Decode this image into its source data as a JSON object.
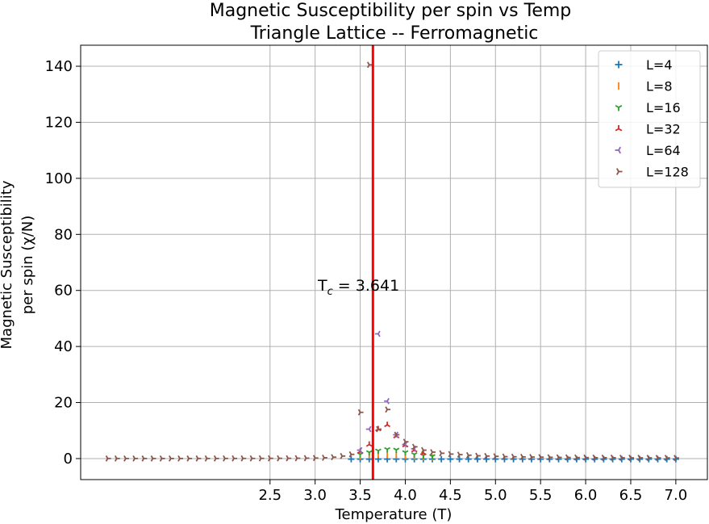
{
  "chart_data": {
    "type": "scatter",
    "title_line1": "Magnetic Susceptibility per spin vs Temp",
    "title_line2": "Triangle Lattice -- Ferromagnetic",
    "xlabel": "Temperature (T)",
    "ylabel_line1": "Magnetic Susceptibility",
    "ylabel_line2": "per spin (χ/N)",
    "xlim": [
      0.4,
      7.35
    ],
    "ylim": [
      -7.5,
      147.5
    ],
    "x_ticks": [
      2.5,
      3.0,
      3.5,
      4.0,
      4.5,
      5.0,
      5.5,
      6.0,
      6.5,
      7.0
    ],
    "x_tick_labels": [
      "2.5",
      "3.0",
      "3.5",
      "4.0",
      "4.5",
      "5.0",
      "5.5",
      "6.0",
      "6.5",
      "7.0"
    ],
    "y_ticks": [
      0,
      20,
      40,
      60,
      80,
      100,
      120,
      140
    ],
    "y_tick_labels": [
      "0",
      "20",
      "40",
      "60",
      "80",
      "100",
      "120",
      "140"
    ],
    "grid": true,
    "legend_placement": "top-right",
    "vline": {
      "x": 3.641,
      "color": "#ff0000"
    },
    "annotation": {
      "prefix": "T",
      "subscript": "c",
      "suffix": " = 3.641",
      "x": 3.0,
      "y": 61
    },
    "series": [
      {
        "name": "L=4",
        "color": "#1f77b4",
        "marker": "plus",
        "x": [
          3.4,
          3.5,
          3.6,
          3.7,
          3.8,
          3.9,
          4.0,
          4.1,
          4.2,
          4.3,
          4.4,
          4.5,
          4.6,
          4.7,
          4.8,
          4.9,
          5.0,
          5.1,
          5.2,
          5.3,
          5.4,
          5.5,
          5.6,
          5.7,
          5.8,
          5.9,
          6.0,
          6.1,
          6.2,
          6.3,
          6.4,
          6.5,
          6.6,
          6.7,
          6.8,
          6.9,
          7.0
        ],
        "y": [
          -0.2,
          -0.2,
          -0.2,
          -0.2,
          -0.2,
          -0.2,
          -0.2,
          -0.2,
          -0.2,
          -0.2,
          -0.2,
          -0.2,
          -0.2,
          -0.2,
          -0.2,
          -0.2,
          -0.2,
          -0.2,
          -0.2,
          -0.2,
          -0.2,
          -0.2,
          -0.2,
          -0.2,
          -0.2,
          -0.2,
          -0.2,
          -0.2,
          -0.2,
          -0.2,
          -0.2,
          -0.2,
          -0.2,
          -0.2,
          -0.2,
          -0.2,
          -0.2
        ]
      },
      {
        "name": "L=8",
        "color": "#ff7f0e",
        "marker": "vline",
        "x": [
          3.5,
          3.6,
          3.7,
          3.8,
          3.9,
          4.0,
          4.1,
          4.2,
          4.3
        ],
        "y": [
          0.8,
          1.2,
          1.4,
          1.3,
          1.1,
          0.9,
          0.7,
          0.5,
          0.4
        ]
      },
      {
        "name": "L=16",
        "color": "#2ca02c",
        "marker": "tri_down",
        "x": [
          3.5,
          3.6,
          3.7,
          3.8,
          3.9,
          4.0,
          4.1,
          4.2,
          4.3
        ],
        "y": [
          1.5,
          2.2,
          2.8,
          3.3,
          3.1,
          2.2,
          1.5,
          1.1,
          0.8
        ]
      },
      {
        "name": "L=32",
        "color": "#d62728",
        "marker": "tri_up",
        "x": [
          3.5,
          3.6,
          3.7,
          3.8,
          3.9,
          4.0,
          4.1,
          4.2
        ],
        "y": [
          2.5,
          5.0,
          10.5,
          12.0,
          8.0,
          4.8,
          3.0,
          2.0
        ]
      },
      {
        "name": "L=64",
        "color": "#9467bd",
        "marker": "tri_left",
        "x": [
          3.5,
          3.6,
          3.7,
          3.8,
          3.9,
          4.0,
          4.1
        ],
        "y": [
          3.0,
          10.5,
          44.5,
          20.5,
          8.5,
          5.0,
          3.5
        ]
      },
      {
        "name": "L=128",
        "color": "#8c564b",
        "marker": "tri_right",
        "x": [
          0.7,
          0.8,
          0.9,
          1.0,
          1.1,
          1.2,
          1.3,
          1.4,
          1.5,
          1.6,
          1.7,
          1.8,
          1.9,
          2.0,
          2.1,
          2.2,
          2.3,
          2.4,
          2.5,
          2.6,
          2.7,
          2.8,
          2.9,
          3.0,
          3.1,
          3.2,
          3.3,
          3.4,
          3.5,
          3.6,
          3.7,
          3.8,
          3.9,
          4.0,
          4.1,
          4.2,
          4.3,
          4.4,
          4.5,
          4.6,
          4.7,
          4.8,
          4.9,
          5.0,
          5.1,
          5.2,
          5.3,
          5.4,
          5.5,
          5.6,
          5.7,
          5.8,
          5.9,
          6.0,
          6.1,
          6.2,
          6.3,
          6.4,
          6.5,
          6.6,
          6.7,
          6.8,
          6.9,
          7.0
        ],
        "y": [
          0.03,
          0.03,
          0.03,
          0.03,
          0.03,
          0.03,
          0.03,
          0.03,
          0.03,
          0.03,
          0.04,
          0.04,
          0.04,
          0.05,
          0.05,
          0.06,
          0.06,
          0.07,
          0.08,
          0.09,
          0.1,
          0.12,
          0.15,
          0.2,
          0.3,
          0.5,
          0.9,
          1.5,
          16.5,
          140.5,
          10.5,
          17.5,
          8.5,
          6.0,
          4.2,
          3.0,
          2.3,
          1.9,
          1.6,
          1.4,
          1.2,
          1.0,
          0.9,
          0.8,
          0.7,
          0.65,
          0.6,
          0.55,
          0.5,
          0.45,
          0.42,
          0.4,
          0.37,
          0.35,
          0.33,
          0.31,
          0.3,
          0.28,
          0.27,
          0.26,
          0.25,
          0.24,
          0.23,
          0.22
        ]
      }
    ]
  }
}
